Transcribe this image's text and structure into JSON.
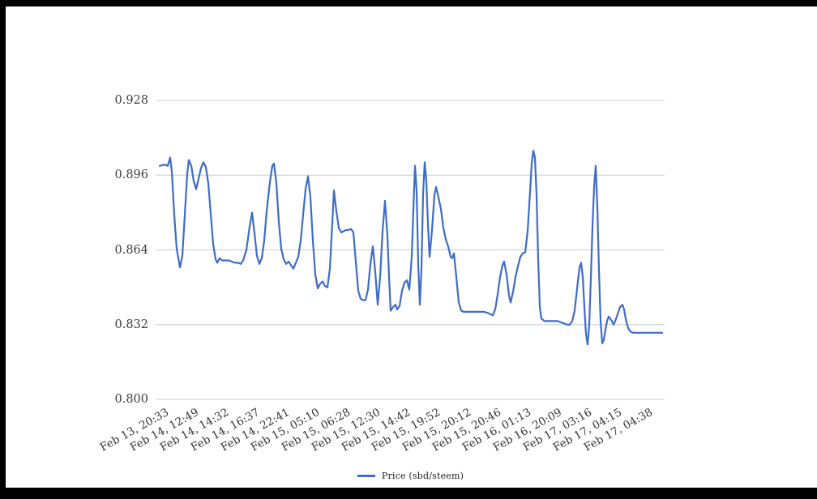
{
  "colors": {
    "line": "#3e6cc7",
    "grid": "#cccccc",
    "axis_text": "#3c3c3c",
    "frame": "#000000",
    "background": "#ffffff"
  },
  "legend": {
    "label": "Price (sbd/steem)"
  },
  "chart_data": {
    "type": "line",
    "title": "",
    "xlabel": "",
    "ylabel": "",
    "grid": "horizontal",
    "legend_position": "bottom",
    "ylim": [
      0.8,
      0.928
    ],
    "y_ticks": [
      "0.928",
      "0.896",
      "0.864",
      "0.832",
      "0.800"
    ],
    "x_labels": [
      "Feb 13, 20:33",
      "Feb 14, 12:49",
      "Feb 14, 14:32",
      "Feb 14, 16:37",
      "Feb 14, 22:41",
      "Feb 15, 05:10",
      "Feb 15, 06:28",
      "Feb 15, 12:30",
      "Feb 15, 14:42",
      "Feb 15, 19:52",
      "Feb 15, 20:12",
      "Feb 15, 20:46",
      "Feb 16, 01:13",
      "Feb 16, 20:09",
      "Feb 17, 03:16",
      "Feb 17, 04:15",
      "Feb 17, 04:38"
    ],
    "series": [
      {
        "name": "Price (sbd/steem)",
        "color": "#3e6cc7"
      }
    ],
    "points": [
      [
        197,
        0.9
      ],
      [
        203,
        0.9005
      ],
      [
        207,
        0.9
      ],
      [
        210,
        0.9035
      ],
      [
        212,
        0.8975
      ],
      [
        215,
        0.879
      ],
      [
        218,
        0.8645
      ],
      [
        222,
        0.8565
      ],
      [
        225,
        0.8615
      ],
      [
        228,
        0.879
      ],
      [
        231,
        0.8965
      ],
      [
        233,
        0.9025
      ],
      [
        236,
        0.9
      ],
      [
        239,
        0.8935
      ],
      [
        242,
        0.89
      ],
      [
        245,
        0.8945
      ],
      [
        248,
        0.899
      ],
      [
        251,
        0.9015
      ],
      [
        254,
        0.8995
      ],
      [
        257,
        0.8925
      ],
      [
        260,
        0.8795
      ],
      [
        263,
        0.8665
      ],
      [
        266,
        0.86
      ],
      [
        268,
        0.8585
      ],
      [
        271,
        0.8605
      ],
      [
        274,
        0.8595
      ],
      [
        278,
        0.8595
      ],
      [
        282,
        0.8595
      ],
      [
        286,
        0.859
      ],
      [
        290,
        0.8585
      ],
      [
        294,
        0.8585
      ],
      [
        297,
        0.858
      ],
      [
        300,
        0.8595
      ],
      [
        304,
        0.864
      ],
      [
        308,
        0.874
      ],
      [
        311,
        0.88
      ],
      [
        314,
        0.871
      ],
      [
        317,
        0.8615
      ],
      [
        320,
        0.858
      ],
      [
        323,
        0.8605
      ],
      [
        326,
        0.868
      ],
      [
        329,
        0.8805
      ],
      [
        333,
        0.893
      ],
      [
        336,
        0.9
      ],
      [
        338,
        0.901
      ],
      [
        341,
        0.8925
      ],
      [
        344,
        0.876
      ],
      [
        347,
        0.8645
      ],
      [
        350,
        0.86
      ],
      [
        353,
        0.858
      ],
      [
        356,
        0.859
      ],
      [
        359,
        0.8575
      ],
      [
        362,
        0.856
      ],
      [
        365,
        0.8585
      ],
      [
        368,
        0.861
      ],
      [
        371,
        0.868
      ],
      [
        374,
        0.879
      ],
      [
        377,
        0.89
      ],
      [
        380,
        0.8955
      ],
      [
        383,
        0.8865
      ],
      [
        386,
        0.868
      ],
      [
        389,
        0.8535
      ],
      [
        392,
        0.8475
      ],
      [
        395,
        0.8495
      ],
      [
        398,
        0.8505
      ],
      [
        401,
        0.8485
      ],
      [
        404,
        0.848
      ],
      [
        407,
        0.856
      ],
      [
        410,
        0.8755
      ],
      [
        412,
        0.8895
      ],
      [
        415,
        0.8805
      ],
      [
        418,
        0.8735
      ],
      [
        421,
        0.8715
      ],
      [
        424,
        0.872
      ],
      [
        427,
        0.8725
      ],
      [
        430,
        0.8725
      ],
      [
        433,
        0.873
      ],
      [
        436,
        0.8715
      ],
      [
        439,
        0.859
      ],
      [
        442,
        0.8465
      ],
      [
        445,
        0.843
      ],
      [
        448,
        0.8425
      ],
      [
        451,
        0.8425
      ],
      [
        454,
        0.847
      ],
      [
        457,
        0.858
      ],
      [
        460,
        0.8655
      ],
      [
        463,
        0.8545
      ],
      [
        466,
        0.8405
      ],
      [
        469,
        0.8525
      ],
      [
        472,
        0.872
      ],
      [
        475,
        0.885
      ],
      [
        478,
        0.87
      ],
      [
        480,
        0.8525
      ],
      [
        482,
        0.838
      ],
      [
        485,
        0.8395
      ],
      [
        488,
        0.8405
      ],
      [
        490,
        0.8385
      ],
      [
        493,
        0.84
      ],
      [
        496,
        0.8465
      ],
      [
        499,
        0.85
      ],
      [
        502,
        0.851
      ],
      [
        505,
        0.847
      ],
      [
        508,
        0.861
      ],
      [
        510,
        0.881
      ],
      [
        512,
        0.9
      ],
      [
        514,
        0.8895
      ],
      [
        516,
        0.858
      ],
      [
        518,
        0.8405
      ],
      [
        520,
        0.856
      ],
      [
        522,
        0.888
      ],
      [
        524,
        0.9015
      ],
      [
        526,
        0.8935
      ],
      [
        528,
        0.875
      ],
      [
        530,
        0.861
      ],
      [
        533,
        0.8725
      ],
      [
        536,
        0.8875
      ],
      [
        538,
        0.891
      ],
      [
        541,
        0.8865
      ],
      [
        544,
        0.8815
      ],
      [
        547,
        0.8735
      ],
      [
        550,
        0.8685
      ],
      [
        553,
        0.8655
      ],
      [
        556,
        0.861
      ],
      [
        558,
        0.8605
      ],
      [
        560,
        0.8625
      ],
      [
        563,
        0.8525
      ],
      [
        566,
        0.8415
      ],
      [
        569,
        0.838
      ],
      [
        572,
        0.8375
      ],
      [
        577,
        0.8375
      ],
      [
        582,
        0.8375
      ],
      [
        587,
        0.8375
      ],
      [
        592,
        0.8375
      ],
      [
        597,
        0.8375
      ],
      [
        602,
        0.837
      ],
      [
        605,
        0.8365
      ],
      [
        608,
        0.836
      ],
      [
        611,
        0.8385
      ],
      [
        614,
        0.845
      ],
      [
        617,
        0.8525
      ],
      [
        620,
        0.8575
      ],
      [
        622,
        0.859
      ],
      [
        625,
        0.8535
      ],
      [
        628,
        0.8445
      ],
      [
        630,
        0.8415
      ],
      [
        633,
        0.846
      ],
      [
        636,
        0.8525
      ],
      [
        639,
        0.857
      ],
      [
        642,
        0.861
      ],
      [
        645,
        0.8625
      ],
      [
        648,
        0.863
      ],
      [
        651,
        0.872
      ],
      [
        654,
        0.889
      ],
      [
        656,
        0.901
      ],
      [
        658,
        0.9065
      ],
      [
        660,
        0.9035
      ],
      [
        662,
        0.8875
      ],
      [
        664,
        0.86
      ],
      [
        666,
        0.8395
      ],
      [
        668,
        0.8345
      ],
      [
        672,
        0.8335
      ],
      [
        676,
        0.8335
      ],
      [
        680,
        0.8335
      ],
      [
        684,
        0.8335
      ],
      [
        688,
        0.8335
      ],
      [
        692,
        0.833
      ],
      [
        696,
        0.8325
      ],
      [
        700,
        0.832
      ],
      [
        703,
        0.832
      ],
      [
        706,
        0.8335
      ],
      [
        709,
        0.838
      ],
      [
        712,
        0.8475
      ],
      [
        715,
        0.8565
      ],
      [
        717,
        0.8585
      ],
      [
        719,
        0.8525
      ],
      [
        721,
        0.8395
      ],
      [
        723,
        0.828
      ],
      [
        725,
        0.8235
      ],
      [
        727,
        0.832
      ],
      [
        729,
        0.852
      ],
      [
        731,
        0.874
      ],
      [
        733,
        0.891
      ],
      [
        735,
        0.9
      ],
      [
        737,
        0.8825
      ],
      [
        739,
        0.855
      ],
      [
        741,
        0.8335
      ],
      [
        743,
        0.824
      ],
      [
        745,
        0.8255
      ],
      [
        747,
        0.83
      ],
      [
        749,
        0.8335
      ],
      [
        751,
        0.8355
      ],
      [
        753,
        0.8345
      ],
      [
        755,
        0.8335
      ],
      [
        757,
        0.832
      ],
      [
        759,
        0.8335
      ],
      [
        762,
        0.8365
      ],
      [
        765,
        0.8395
      ],
      [
        768,
        0.8405
      ],
      [
        770,
        0.8385
      ],
      [
        772,
        0.8345
      ],
      [
        775,
        0.8305
      ],
      [
        778,
        0.829
      ],
      [
        781,
        0.8285
      ],
      [
        786,
        0.8285
      ],
      [
        792,
        0.8285
      ],
      [
        798,
        0.8285
      ],
      [
        804,
        0.8285
      ],
      [
        810,
        0.8285
      ],
      [
        817,
        0.8285
      ]
    ]
  }
}
